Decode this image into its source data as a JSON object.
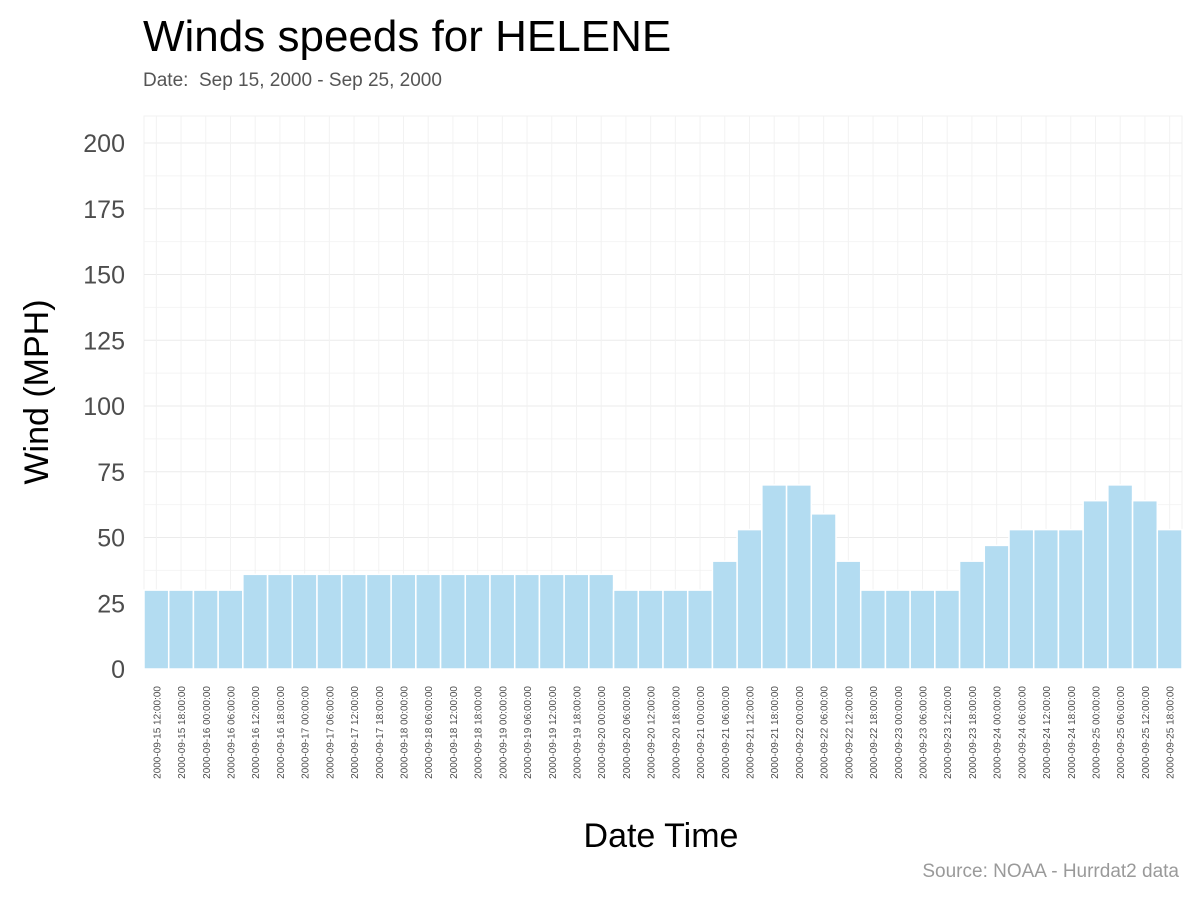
{
  "title": "Winds speeds for HELENE",
  "subtitle": "Date:  Sep 15, 2000 - Sep 25, 2000",
  "caption": "Source: NOAA - Hurrdat2 data",
  "colors": {
    "bar_fill": "#b3dcf1",
    "bar_stroke": "#ffffff",
    "grid": "#ebebeb",
    "panel_border": "#f2f2f2"
  },
  "chart_data": {
    "type": "bar",
    "title": "Winds speeds for HELENE",
    "subtitle": "Date:  Sep 15, 2000 - Sep 25, 2000",
    "xlabel": "Date Time",
    "ylabel": "Wind (MPH)",
    "ylim": [
      0,
      200
    ],
    "yticks": [
      0,
      25,
      50,
      75,
      100,
      125,
      150,
      175,
      200
    ],
    "grid": true,
    "legend": "none",
    "categories": [
      "2000-09-15 12:00:00",
      "2000-09-15 18:00:00",
      "2000-09-16 00:00:00",
      "2000-09-16 06:00:00",
      "2000-09-16 12:00:00",
      "2000-09-16 18:00:00",
      "2000-09-17 00:00:00",
      "2000-09-17 06:00:00",
      "2000-09-17 12:00:00",
      "2000-09-17 18:00:00",
      "2000-09-18 00:00:00",
      "2000-09-18 06:00:00",
      "2000-09-18 12:00:00",
      "2000-09-18 18:00:00",
      "2000-09-19 00:00:00",
      "2000-09-19 06:00:00",
      "2000-09-19 12:00:00",
      "2000-09-19 18:00:00",
      "2000-09-20 00:00:00",
      "2000-09-20 06:00:00",
      "2000-09-20 12:00:00",
      "2000-09-20 18:00:00",
      "2000-09-21 00:00:00",
      "2000-09-21 06:00:00",
      "2000-09-21 12:00:00",
      "2000-09-21 18:00:00",
      "2000-09-22 00:00:00",
      "2000-09-22 06:00:00",
      "2000-09-22 12:00:00",
      "2000-09-22 18:00:00",
      "2000-09-23 00:00:00",
      "2000-09-23 06:00:00",
      "2000-09-23 12:00:00",
      "2000-09-23 18:00:00",
      "2000-09-24 00:00:00",
      "2000-09-24 06:00:00",
      "2000-09-24 12:00:00",
      "2000-09-24 18:00:00",
      "2000-09-25 00:00:00",
      "2000-09-25 06:00:00",
      "2000-09-25 12:00:00",
      "2000-09-25 18:00:00"
    ],
    "values": [
      30,
      30,
      30,
      30,
      36,
      36,
      36,
      36,
      36,
      36,
      36,
      36,
      36,
      36,
      36,
      36,
      36,
      36,
      36,
      30,
      30,
      30,
      30,
      41,
      53,
      70,
      70,
      59,
      41,
      30,
      30,
      30,
      30,
      41,
      47,
      53,
      53,
      53,
      64,
      70,
      64,
      53
    ]
  }
}
